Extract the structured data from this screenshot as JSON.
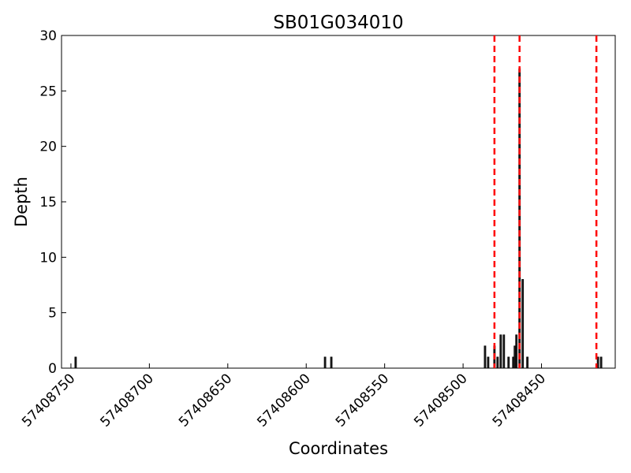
{
  "chart_data": {
    "type": "bar",
    "title": "SB01G034010",
    "x_label": "Coordinates",
    "y_label": "Depth",
    "x": [
      57408747,
      57408588,
      57408584,
      57408486,
      57408484,
      57408480,
      57408478,
      57408476,
      57408474,
      57408471,
      57408468,
      57408467,
      57408466,
      57408464,
      57408462,
      57408459,
      57408414,
      57408412
    ],
    "values": [
      1,
      1,
      1,
      2,
      1,
      2,
      1,
      3,
      3,
      1,
      1,
      2,
      3,
      27,
      8,
      1,
      1,
      1
    ],
    "color": "#222222",
    "xlim": [
      57408756,
      57408403
    ],
    "xticks": [
      57408750,
      57408700,
      57408650,
      57408600,
      57408550,
      57408500,
      57408450
    ],
    "ylim": [
      0,
      30
    ],
    "yticks": [
      0,
      5,
      10,
      15,
      20,
      25,
      30
    ],
    "vlines": [
      57408480,
      57408464,
      57408415
    ],
    "vline_color": "#ff0000"
  }
}
